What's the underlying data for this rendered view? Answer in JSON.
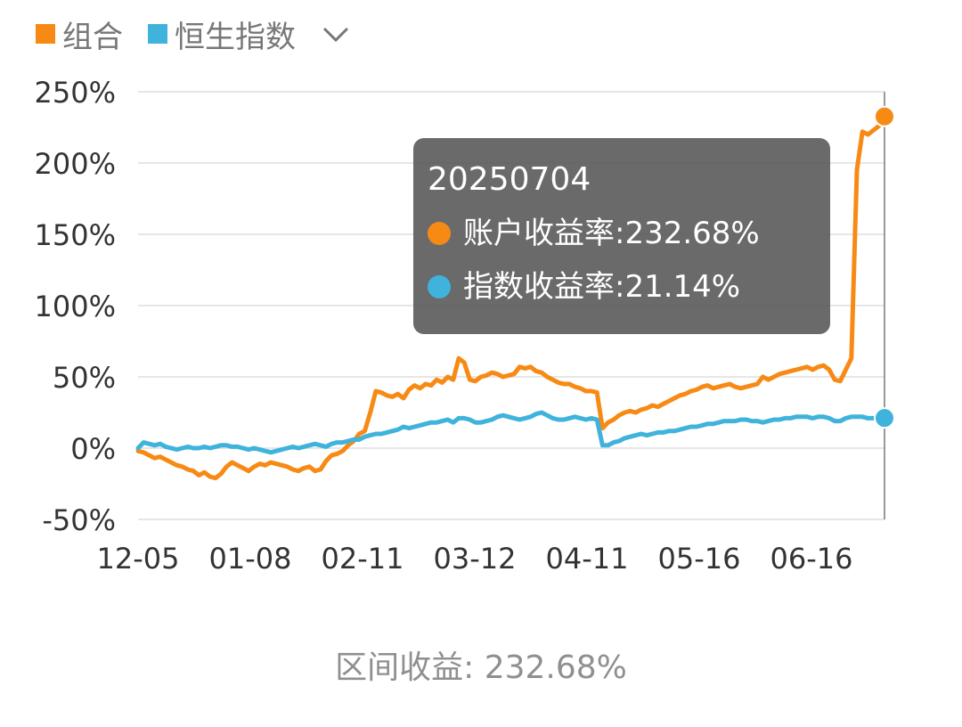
{
  "legend": {
    "items": [
      {
        "label": "组合",
        "color": "#F78A15"
      },
      {
        "label": "恒生指数",
        "color": "#3FB3DC"
      }
    ],
    "dropdown_icon": "chevron-down-icon"
  },
  "tooltip": {
    "date": "20250704",
    "rows": [
      {
        "label": "账户收益率:232.68%",
        "color": "#F78A15"
      },
      {
        "label": "指数收益率:21.14%",
        "color": "#3FB3DC"
      }
    ]
  },
  "summary": {
    "text": "区间收益: 232.68%"
  },
  "chart_data": {
    "type": "line",
    "x_tick_labels": [
      "12-05",
      "01-08",
      "02-11",
      "03-12",
      "04-11",
      "05-16",
      "06-16"
    ],
    "y_tick_labels": [
      "250%",
      "200%",
      "150%",
      "100%",
      "50%",
      "0%",
      "-50%"
    ],
    "ylim": [
      -50,
      250
    ],
    "y_ticks": [
      250,
      200,
      150,
      100,
      50,
      0,
      -50
    ],
    "grid": true,
    "legend_position": "top-left",
    "series": [
      {
        "name": "组合",
        "color": "#F78A15",
        "values": [
          -2,
          -3,
          -5,
          -7,
          -6,
          -8,
          -10,
          -12,
          -13,
          -15,
          -16,
          -19,
          -17,
          -20,
          -21,
          -18,
          -13,
          -10,
          -12,
          -14,
          -16,
          -13,
          -11,
          -12,
          -10,
          -11,
          -12,
          -13,
          -15,
          -16,
          -14,
          -13,
          -16,
          -15,
          -9,
          -5,
          -4,
          -2,
          2,
          5,
          10,
          12,
          25,
          40,
          39,
          37,
          36,
          38,
          35,
          41,
          44,
          42,
          45,
          44,
          48,
          46,
          50,
          48,
          63,
          60,
          48,
          47,
          50,
          51,
          53,
          52,
          50,
          51,
          52,
          57,
          56,
          57,
          54,
          53,
          50,
          48,
          46,
          45,
          45,
          43,
          42,
          40,
          40,
          39,
          14,
          18,
          20,
          23,
          25,
          26,
          25,
          27,
          28,
          30,
          29,
          31,
          33,
          35,
          37,
          38,
          40,
          41,
          43,
          44,
          42,
          43,
          44,
          45,
          43,
          42,
          43,
          44,
          45,
          50,
          48,
          50,
          52,
          53,
          54,
          55,
          56,
          57,
          55,
          57,
          58,
          55,
          48,
          47,
          55,
          63,
          195,
          222,
          220,
          223,
          226,
          232.68
        ],
        "last_point_label": "232.68%"
      },
      {
        "name": "恒生指数",
        "color": "#3FB3DC",
        "values": [
          0,
          4,
          3,
          2,
          3,
          1,
          0,
          -1,
          0,
          1,
          0,
          0,
          1,
          0,
          1,
          2,
          2,
          1,
          1,
          0,
          -1,
          0,
          -1,
          -2,
          -3,
          -2,
          -1,
          0,
          1,
          0,
          1,
          2,
          3,
          2,
          1,
          3,
          4,
          4,
          5,
          6,
          6,
          8,
          9,
          10,
          10,
          11,
          12,
          13,
          15,
          14,
          15,
          16,
          17,
          18,
          18,
          19,
          20,
          18,
          21,
          21,
          20,
          18,
          18,
          19,
          20,
          22,
          23,
          22,
          21,
          20,
          21,
          22,
          24,
          25,
          23,
          21,
          20,
          20,
          21,
          22,
          21,
          20,
          21,
          20,
          2,
          2,
          4,
          5,
          7,
          8,
          9,
          10,
          9,
          10,
          11,
          11,
          12,
          12,
          13,
          14,
          15,
          15,
          16,
          17,
          17,
          18,
          19,
          19,
          19,
          20,
          20,
          19,
          19,
          18,
          19,
          20,
          20,
          21,
          21,
          22,
          22,
          22,
          21,
          22,
          22,
          21,
          19,
          19,
          21,
          22,
          22,
          22,
          21,
          21,
          21.5,
          21.14
        ],
        "last_point_label": "21.14%"
      }
    ]
  }
}
